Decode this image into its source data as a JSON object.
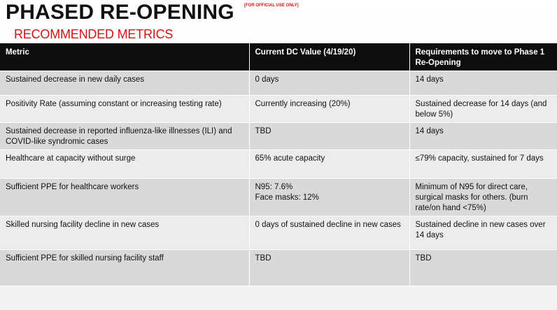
{
  "slide": {
    "title": "PHASED RE-OPENING",
    "classification": "[FOR OFFICIAL USE ONLY]",
    "subtitle": "RECOMMENDED METRICS"
  },
  "table": {
    "headers": [
      "Metric",
      "Current DC Value (4/19/20)",
      "Requirements to move to Phase 1 Re-Opening"
    ],
    "rows": [
      {
        "metric": "Sustained decrease in new daily cases",
        "current": "0 days",
        "requirement": "14 days"
      },
      {
        "metric": "Positivity Rate (assuming constant or increasing testing rate)",
        "current": "Currently increasing (20%)",
        "requirement": "Sustained decrease for 14 days (and below 5%)"
      },
      {
        "metric": "Sustained decrease in reported influenza-like illnesses (ILI) and COVID-like syndromic cases",
        "current": "TBD",
        "requirement": "14 days"
      },
      {
        "metric": "Healthcare at capacity without surge",
        "current": "65% acute capacity",
        "requirement": "≤79% capacity, sustained for 7 days"
      },
      {
        "metric": "Sufficient PPE for healthcare workers",
        "current_lines": [
          "N95: 7.6%",
          "Face masks: 12%"
        ],
        "requirement": "Minimum of N95 for direct care, surgical masks for others. (burn rate/on hand <75%)"
      },
      {
        "metric": "Skilled nursing facility decline in new cases",
        "current": "0 days of sustained decline in new cases",
        "requirement": "Sustained decline in new cases over 14 days"
      },
      {
        "metric": "Sufficient PPE for skilled nursing facility staff",
        "current": "TBD",
        "requirement": "TBD"
      }
    ]
  }
}
